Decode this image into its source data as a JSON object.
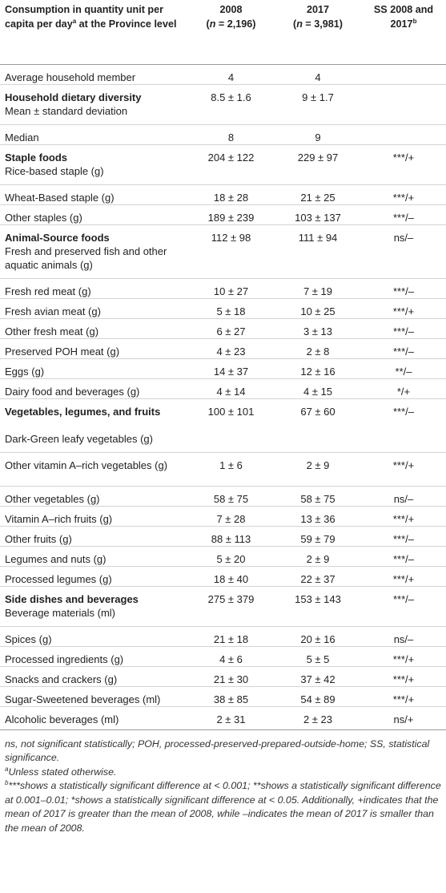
{
  "header": {
    "col1": "Consumption in quantity unit per capita per day",
    "col1_sup": "a",
    "col1_tail": " at the Province level",
    "col2_line1": "2008",
    "col2_line2_pre": "(",
    "col2_line2_n": "n",
    "col2_line2_post": " = 2,196)",
    "col3_line1": "2017",
    "col3_line2_pre": "(",
    "col3_line2_n": "n",
    "col3_line2_post": " = 3,981)",
    "col4": "SS 2008 and 2017",
    "col4_sup": "b"
  },
  "rows": [
    {
      "label": "Average household member",
      "v2008": "4",
      "v2017": "4",
      "ss": "",
      "bold": false
    },
    {
      "label": "Household dietary diversity",
      "v2008": "8.5 ± 1.6",
      "v2017": "9 ± 1.7",
      "ss": "",
      "bold": true
    },
    {
      "label": "Mean ± standard deviation",
      "v2008": "",
      "v2017": "",
      "ss": "",
      "bold": false
    },
    {
      "label": "Median",
      "v2008": "8",
      "v2017": "9",
      "ss": "",
      "bold": false
    },
    {
      "label": "Staple foods",
      "v2008": "204 ± 122",
      "v2017": "229 ± 97",
      "ss": "***/+",
      "bold": true
    },
    {
      "label": "Rice-based staple (g)",
      "v2008": "",
      "v2017": "",
      "ss": "",
      "bold": false
    },
    {
      "label": "Wheat-Based staple (g)",
      "v2008": "18 ± 28",
      "v2017": "21 ± 25",
      "ss": "***/+",
      "bold": false
    },
    {
      "label": "Other staples (g)",
      "v2008": "189 ± 239",
      "v2017": "103 ± 137",
      "ss": "***/–",
      "bold": false
    },
    {
      "label": "Animal-Source foods",
      "v2008": "112 ± 98",
      "v2017": "111 ± 94",
      "ss": "ns/–",
      "bold": true
    },
    {
      "label": "Fresh and preserved fish and other aquatic animals (g)",
      "v2008": "",
      "v2017": "",
      "ss": "",
      "bold": false
    },
    {
      "label": "Fresh red meat (g)",
      "v2008": "10 ± 27",
      "v2017": "7 ± 19",
      "ss": "***/–",
      "bold": false
    },
    {
      "label": "Fresh avian meat (g)",
      "v2008": "5 ± 18",
      "v2017": "10 ± 25",
      "ss": "***/+",
      "bold": false
    },
    {
      "label": "Other fresh meat (g)",
      "v2008": "6 ± 27",
      "v2017": "3 ± 13",
      "ss": "***/–",
      "bold": false
    },
    {
      "label": "Preserved POH meat (g)",
      "v2008": "4 ± 23",
      "v2017": "2 ± 8",
      "ss": "***/–",
      "bold": false
    },
    {
      "label": "Eggs (g)",
      "v2008": "14 ± 37",
      "v2017": "12 ± 16",
      "ss": "**/–",
      "bold": false
    },
    {
      "label": "Dairy food and beverages (g)",
      "v2008": "4 ± 14",
      "v2017": "4 ± 15",
      "ss": "*/+",
      "bold": false
    },
    {
      "label": "Vegetables, legumes, and fruits",
      "v2008": "100 ± 101",
      "v2017": "67 ± 60",
      "ss": "***/–",
      "bold": true
    },
    {
      "label": "Dark-Green leafy vegetables (g)",
      "v2008": "",
      "v2017": "",
      "ss": "",
      "bold": false
    },
    {
      "label": "Other vitamin A–rich vegetables (g)",
      "v2008": "1 ± 6",
      "v2017": "2 ± 9",
      "ss": "***/+",
      "bold": false
    },
    {
      "label": "Other vegetables (g)",
      "v2008": "58 ± 75",
      "v2017": "58 ± 75",
      "ss": "ns/–",
      "bold": false
    },
    {
      "label": "Vitamin A–rich fruits (g)",
      "v2008": "7 ± 28",
      "v2017": "13 ± 36",
      "ss": "***/+",
      "bold": false
    },
    {
      "label": "Other fruits (g)",
      "v2008": "88 ± 113",
      "v2017": "59 ± 79",
      "ss": "***/–",
      "bold": false
    },
    {
      "label": "Legumes and nuts (g)",
      "v2008": "5 ± 20",
      "v2017": "2 ± 9",
      "ss": "***/–",
      "bold": false
    },
    {
      "label": "Processed legumes (g)",
      "v2008": "18 ± 40",
      "v2017": "22 ± 37",
      "ss": "***/+",
      "bold": false
    },
    {
      "label": "Side dishes and beverages",
      "v2008": "275 ± 379",
      "v2017": "153 ± 143",
      "ss": "***/–",
      "bold": true
    },
    {
      "label": "Beverage materials (ml)",
      "v2008": "",
      "v2017": "",
      "ss": "",
      "bold": false
    },
    {
      "label": "Spices (g)",
      "v2008": "21 ± 18",
      "v2017": "20 ± 16",
      "ss": "ns/–",
      "bold": false
    },
    {
      "label": "Processed ingredients (g)",
      "v2008": "4 ± 6",
      "v2017": "5 ± 5",
      "ss": "***/+",
      "bold": false
    },
    {
      "label": "Snacks and crackers (g)",
      "v2008": "21 ± 30",
      "v2017": "37 ± 42",
      "ss": "***/+",
      "bold": false
    },
    {
      "label": "Sugar-Sweetened beverages (ml)",
      "v2008": "38 ± 85",
      "v2017": "54 ± 89",
      "ss": "***/+",
      "bold": false
    },
    {
      "label": "Alcoholic beverages (ml)",
      "v2008": "2 ± 31",
      "v2017": "2 ± 23",
      "ss": "ns/+",
      "bold": false
    }
  ],
  "notes": {
    "abbrev": "ns, not significant statistically; POH, processed-preserved-prepared-outside-home; SS, statistical significance.",
    "a_sup": "a",
    "a_text": "Unless stated otherwise.",
    "b_sup": "b",
    "b_text": "***shows a statistically significant difference at < 0.001; **shows a statistically significant difference at 0.001–0.01; *shows a statistically significant difference at < 0.05. Additionally, +indicates that the mean of 2017 is greater than the mean of 2008, while –indicates the mean of 2017 is smaller than the mean of 2008."
  }
}
